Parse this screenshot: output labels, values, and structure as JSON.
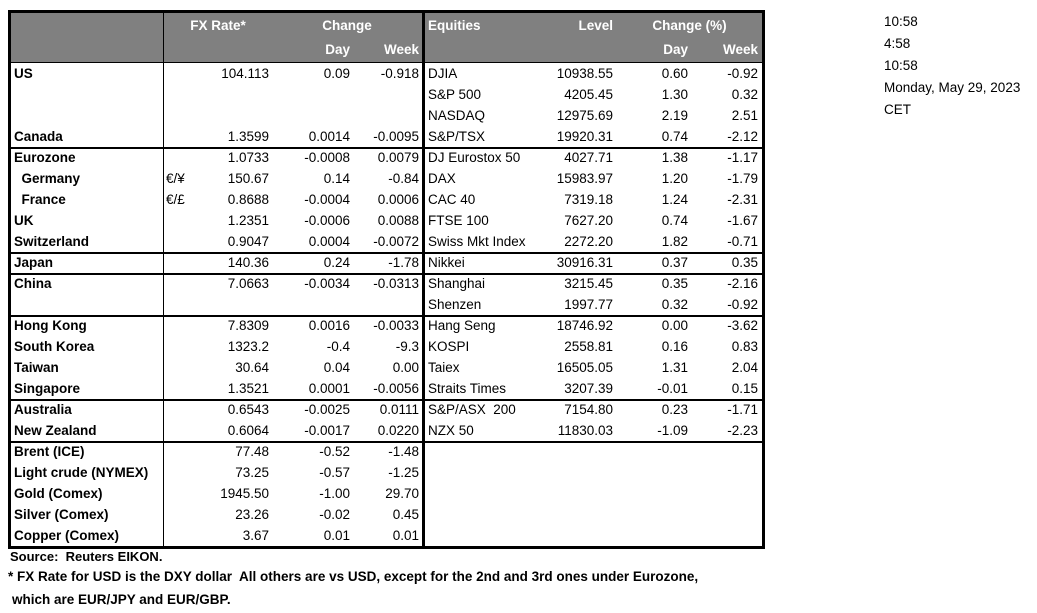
{
  "colors": {
    "header_bg": "#808080",
    "header_text": "#ffffff",
    "border": "#000000",
    "page_bg": "#ffffff"
  },
  "fx_header": {
    "rate": "FX Rate*",
    "change": "Change",
    "day": "Day",
    "week": "Week"
  },
  "eq_header": {
    "title": "Equities",
    "level": "Level",
    "change": "Change (%)",
    "day": "Day",
    "week": "Week"
  },
  "timestamps": [
    "10:58",
    "4:58",
    "10:58",
    "Monday, May 29, 2023",
    "CET"
  ],
  "rows": [
    {
      "country": "US",
      "pair": "",
      "rate": "104.113",
      "day": "0.09",
      "week": "-0.918",
      "equity": "DJIA",
      "level": "10938.55",
      "eday": "0.60",
      "eweek": "-0.92"
    },
    {
      "country": "",
      "pair": "",
      "rate": "",
      "day": "",
      "week": "",
      "equity": "S&P 500",
      "level": "4205.45",
      "eday": "1.30",
      "eweek": "0.32"
    },
    {
      "country": "",
      "pair": "",
      "rate": "",
      "day": "",
      "week": "",
      "equity": "NASDAQ",
      "level": "12975.69",
      "eday": "2.19",
      "eweek": "2.51"
    },
    {
      "country": "Canada",
      "pair": "",
      "rate": "1.3599",
      "day": "0.0014",
      "week": "-0.0095",
      "equity": "S&P/TSX",
      "level": "19920.31",
      "eday": "0.74",
      "eweek": "-2.12"
    },
    {
      "country": "Eurozone",
      "pair": "",
      "rate": "1.0733",
      "day": "-0.0008",
      "week": "0.0079",
      "equity": "DJ Eurostox 50",
      "level": "4027.71",
      "eday": "1.38",
      "eweek": "-1.17"
    },
    {
      "country": "  Germany",
      "pair": "€/¥",
      "rate": "150.67",
      "day": "0.14",
      "week": "-0.84",
      "equity": "DAX",
      "level": "15983.97",
      "eday": "1.20",
      "eweek": "-1.79"
    },
    {
      "country": "  France",
      "pair": "€/£",
      "rate": "0.8688",
      "day": "-0.0004",
      "week": "0.0006",
      "equity": "CAC 40",
      "level": "7319.18",
      "eday": "1.24",
      "eweek": "-2.31"
    },
    {
      "country": "UK",
      "pair": "",
      "rate": "1.2351",
      "day": "-0.0006",
      "week": "0.0088",
      "equity": "FTSE 100",
      "level": "7627.20",
      "eday": "0.74",
      "eweek": "-1.67"
    },
    {
      "country": "Switzerland",
      "pair": "",
      "rate": "0.9047",
      "day": "0.0004",
      "week": "-0.0072",
      "equity": "Swiss Mkt Index",
      "level": "2272.20",
      "eday": "1.82",
      "eweek": "-0.71"
    },
    {
      "country": "Japan",
      "pair": "",
      "rate": "140.36",
      "day": "0.24",
      "week": "-1.78",
      "equity": "Nikkei",
      "level": "30916.31",
      "eday": "0.37",
      "eweek": "0.35"
    },
    {
      "country": "China",
      "pair": "",
      "rate": "7.0663",
      "day": "-0.0034",
      "week": "-0.0313",
      "equity": "Shanghai",
      "level": "3215.45",
      "eday": "0.35",
      "eweek": "-2.16"
    },
    {
      "country": "",
      "pair": "",
      "rate": "",
      "day": "",
      "week": "",
      "equity": "Shenzen",
      "level": "1997.77",
      "eday": "0.32",
      "eweek": "-0.92"
    },
    {
      "country": "Hong Kong",
      "pair": "",
      "rate": "7.8309",
      "day": "0.0016",
      "week": "-0.0033",
      "equity": "Hang Seng",
      "level": "18746.92",
      "eday": "0.00",
      "eweek": "-3.62"
    },
    {
      "country": "South Korea",
      "pair": "",
      "rate": "1323.2",
      "day": "-0.4",
      "week": "-9.3",
      "equity": "KOSPI",
      "level": "2558.81",
      "eday": "0.16",
      "eweek": "0.83"
    },
    {
      "country": "Taiwan",
      "pair": "",
      "rate": "30.64",
      "day": "0.04",
      "week": "0.00",
      "equity": "Taiex",
      "level": "16505.05",
      "eday": "1.31",
      "eweek": "2.04"
    },
    {
      "country": "Singapore",
      "pair": "",
      "rate": "1.3521",
      "day": "0.0001",
      "week": "-0.0056",
      "equity": "Straits Times",
      "level": "3207.39",
      "eday": "-0.01",
      "eweek": "0.15"
    },
    {
      "country": "Australia",
      "pair": "",
      "rate": "0.6543",
      "day": "-0.0025",
      "week": "0.0111",
      "equity": "S&P/ASX  200",
      "level": "7154.80",
      "eday": "0.23",
      "eweek": "-1.71"
    },
    {
      "country": "New Zealand",
      "pair": "",
      "rate": "0.6064",
      "day": "-0.0017",
      "week": "0.0220",
      "equity": "NZX 50",
      "level": "11830.03",
      "eday": "-1.09",
      "eweek": "-2.23"
    },
    {
      "country": "Brent (ICE)",
      "pair": "",
      "rate": "77.48",
      "day": "-0.52",
      "week": "-1.48",
      "equity": "",
      "level": "",
      "eday": "",
      "eweek": ""
    },
    {
      "country": "Light crude (NYMEX)",
      "pair": "",
      "rate": "73.25",
      "day": "-0.57",
      "week": "-1.25",
      "equity": "",
      "level": "",
      "eday": "",
      "eweek": ""
    },
    {
      "country": "Gold (Comex)",
      "pair": "",
      "rate": "1945.50",
      "day": "-1.00",
      "week": "29.70",
      "equity": "",
      "level": "",
      "eday": "",
      "eweek": ""
    },
    {
      "country": "Silver (Comex)",
      "pair": "",
      "rate": "23.26",
      "day": "-0.02",
      "week": "0.45",
      "equity": "",
      "level": "",
      "eday": "",
      "eweek": ""
    },
    {
      "country": "Copper (Comex)",
      "pair": "",
      "rate": "3.67",
      "day": "0.01",
      "week": "0.01",
      "equity": "",
      "level": "",
      "eday": "",
      "eweek": ""
    }
  ],
  "footer": {
    "source": "Source:  Reuters EIKON.",
    "note1": "* FX Rate for USD is the DXY dollar  All others are vs USD, except for the 2nd and 3rd ones under Eurozone,",
    "note2": "which are EUR/JPY and EUR/GBP."
  }
}
